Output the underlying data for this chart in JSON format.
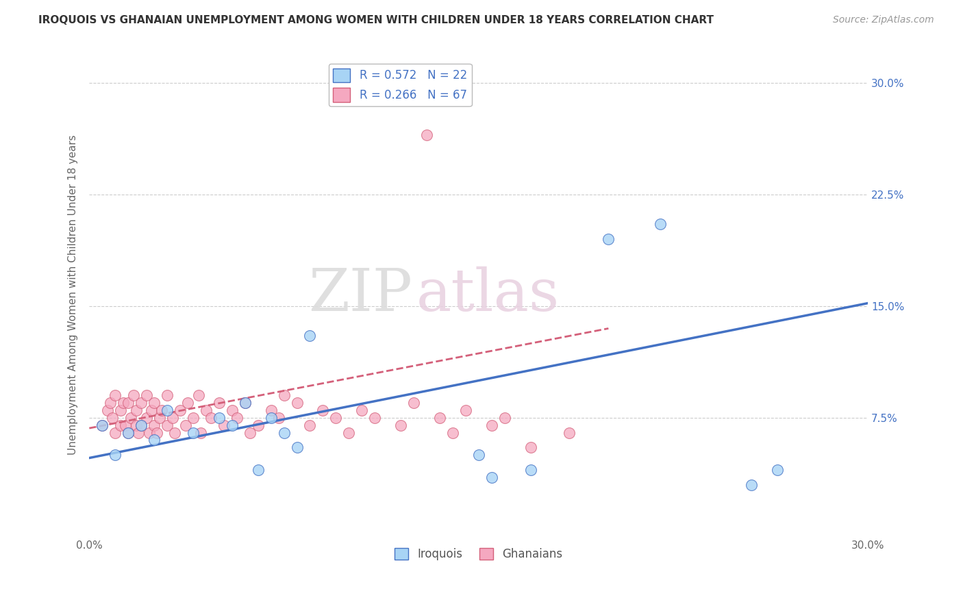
{
  "title": "IROQUOIS VS GHANAIAN UNEMPLOYMENT AMONG WOMEN WITH CHILDREN UNDER 18 YEARS CORRELATION CHART",
  "source": "Source: ZipAtlas.com",
  "ylabel": "Unemployment Among Women with Children Under 18 years",
  "xlim": [
    0.0,
    0.3
  ],
  "ylim": [
    -0.005,
    0.32
  ],
  "yticks": [
    0.075,
    0.15,
    0.225,
    0.3
  ],
  "yticklabels": [
    "7.5%",
    "15.0%",
    "22.5%",
    "30.0%"
  ],
  "legend_r_iroquois": "R = 0.572",
  "legend_n_iroquois": "N = 22",
  "legend_r_ghanaian": "R = 0.266",
  "legend_n_ghanaian": "N = 67",
  "iroquois_color": "#A8D4F5",
  "ghanaian_color": "#F5A8C0",
  "iroquois_line_color": "#4472C4",
  "ghanaian_line_color": "#D4607A",
  "watermark_zip": "ZIP",
  "watermark_atlas": "atlas",
  "iroquois_x": [
    0.005,
    0.01,
    0.015,
    0.02,
    0.025,
    0.03,
    0.04,
    0.05,
    0.055,
    0.06,
    0.065,
    0.07,
    0.075,
    0.08,
    0.085,
    0.15,
    0.155,
    0.17,
    0.2,
    0.22,
    0.255,
    0.265
  ],
  "iroquois_y": [
    0.07,
    0.05,
    0.065,
    0.07,
    0.06,
    0.08,
    0.065,
    0.075,
    0.07,
    0.085,
    0.04,
    0.075,
    0.065,
    0.055,
    0.13,
    0.05,
    0.035,
    0.04,
    0.195,
    0.205,
    0.03,
    0.04
  ],
  "ghanaian_x": [
    0.005,
    0.007,
    0.008,
    0.009,
    0.01,
    0.01,
    0.012,
    0.012,
    0.013,
    0.014,
    0.015,
    0.015,
    0.016,
    0.017,
    0.018,
    0.018,
    0.019,
    0.02,
    0.02,
    0.022,
    0.022,
    0.023,
    0.024,
    0.025,
    0.025,
    0.026,
    0.027,
    0.028,
    0.03,
    0.03,
    0.032,
    0.033,
    0.035,
    0.037,
    0.038,
    0.04,
    0.042,
    0.043,
    0.045,
    0.047,
    0.05,
    0.052,
    0.055,
    0.057,
    0.06,
    0.062,
    0.065,
    0.07,
    0.073,
    0.075,
    0.08,
    0.085,
    0.09,
    0.095,
    0.1,
    0.105,
    0.11,
    0.12,
    0.125,
    0.13,
    0.135,
    0.14,
    0.145,
    0.155,
    0.16,
    0.17,
    0.185
  ],
  "ghanaian_y": [
    0.07,
    0.08,
    0.085,
    0.075,
    0.065,
    0.09,
    0.07,
    0.08,
    0.085,
    0.07,
    0.065,
    0.085,
    0.075,
    0.09,
    0.07,
    0.08,
    0.065,
    0.07,
    0.085,
    0.075,
    0.09,
    0.065,
    0.08,
    0.07,
    0.085,
    0.065,
    0.075,
    0.08,
    0.07,
    0.09,
    0.075,
    0.065,
    0.08,
    0.07,
    0.085,
    0.075,
    0.09,
    0.065,
    0.08,
    0.075,
    0.085,
    0.07,
    0.08,
    0.075,
    0.085,
    0.065,
    0.07,
    0.08,
    0.075,
    0.09,
    0.085,
    0.07,
    0.08,
    0.075,
    0.065,
    0.08,
    0.075,
    0.07,
    0.085,
    0.265,
    0.075,
    0.065,
    0.08,
    0.07,
    0.075,
    0.055,
    0.065
  ],
  "iroquois_line_x": [
    0.0,
    0.3
  ],
  "iroquois_line_y": [
    0.048,
    0.152
  ],
  "ghanaian_line_x": [
    0.0,
    0.2
  ],
  "ghanaian_line_y": [
    0.068,
    0.135
  ]
}
